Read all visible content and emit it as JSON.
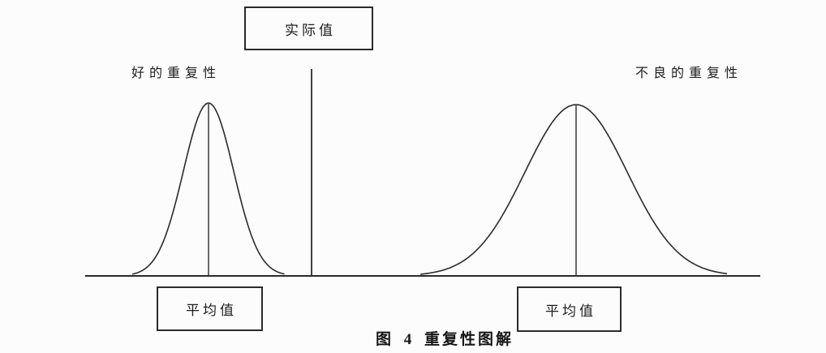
{
  "figure": {
    "top_box_label": "实际值",
    "left_curve_label": "好的重复性",
    "right_curve_label": "不良的重复性",
    "left_mean_box_label": "平均值",
    "right_mean_box_label": "平均值",
    "caption": "图 4 重复性图解"
  },
  "colors": {
    "ink": "#2b2b2b",
    "paper": "#fcfcfc"
  },
  "chart_data": {
    "type": "diagram",
    "title": "图 4 重复性图解",
    "description": "Two normal distribution curves on a shared horizontal baseline illustrating measurement repeatability; a vertical reference line marks the actual value between them.",
    "reference_line_label": "实际值",
    "curves": [
      {
        "label": "好的重复性",
        "shape": "narrow tall bell curve",
        "mean_marker_label": "平均值",
        "relative_spread": "small"
      },
      {
        "label": "不良的重复性",
        "shape": "wide flat bell curve",
        "mean_marker_label": "平均值",
        "relative_spread": "large"
      }
    ]
  }
}
